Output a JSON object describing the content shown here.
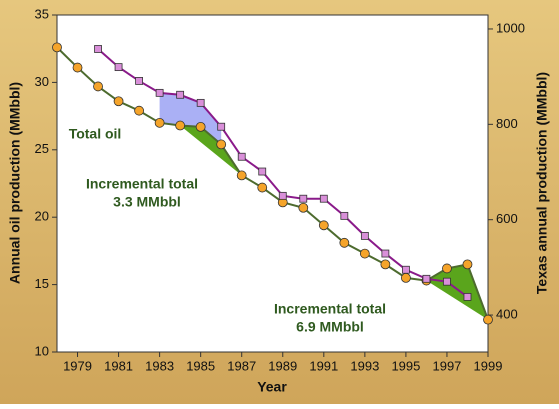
{
  "chart_data": {
    "type": "line",
    "xlabel": "Year",
    "ylabel": "Annual oil production (MMbbl)",
    "y2label": "Texas annual production (MMbbl)",
    "xlim": [
      1978,
      1999
    ],
    "xticks": [
      1979,
      1981,
      1983,
      1985,
      1987,
      1989,
      1991,
      1993,
      1995,
      1997,
      1999
    ],
    "ylim": [
      10,
      35
    ],
    "yticks": [
      10,
      15,
      20,
      25,
      30,
      35
    ],
    "y2lim": [
      322.5,
      1029.3
    ],
    "y2ticks": [
      400,
      600,
      800,
      1000
    ],
    "series": [
      {
        "name": "Total oil",
        "color": "#f5a42a",
        "line_color": "#4d6b2e",
        "axis": "y",
        "x": [
          1978,
          1979,
          1980,
          1981,
          1982,
          1983,
          1984,
          1985,
          1986,
          1987,
          1988,
          1989,
          1990,
          1991,
          1992,
          1993,
          1994,
          1995,
          1996,
          1997,
          1998,
          1999
        ],
        "values": [
          32.6,
          31.1,
          29.7,
          28.6,
          27.9,
          27.0,
          26.8,
          26.7,
          25.4,
          23.1,
          22.2,
          21.1,
          20.7,
          19.4,
          18.1,
          17.3,
          16.5,
          15.5,
          15.3,
          16.2,
          16.5,
          12.4
        ]
      },
      {
        "name": "Texas",
        "color": "#d98fd9",
        "line_color": "#8a1a8a",
        "axis": "y2",
        "x": [
          1980,
          1981,
          1982,
          1983,
          1984,
          1985,
          1986,
          1987,
          1988,
          1989,
          1990,
          1991,
          1992,
          1993,
          1994,
          1995,
          1996,
          1997,
          1998
        ],
        "values": [
          958,
          920,
          891,
          866,
          862,
          845,
          795,
          732,
          701,
          650,
          644,
          644,
          608,
          566,
          529,
          495,
          476,
          470,
          438
        ]
      }
    ],
    "annotations": [
      "Incremental total",
      "3.3 MMbbl",
      "Incremental total",
      "6.9 MMbbl"
    ]
  }
}
